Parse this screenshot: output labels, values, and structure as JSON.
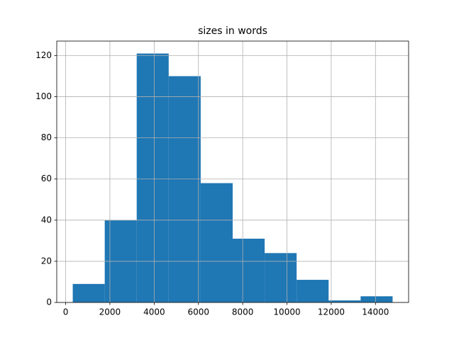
{
  "chart_data": {
    "type": "histogram",
    "title": "sizes in words",
    "bins": [
      321,
      1766,
      3211,
      4656,
      6102,
      7547,
      8992,
      10437,
      11882,
      13328,
      14773
    ],
    "counts": [
      9,
      40,
      121,
      110,
      58,
      31,
      24,
      11,
      1,
      3
    ],
    "color": "#1f77b4",
    "xlim": [
      -402,
      15496
    ],
    "xticks": [
      0,
      2000,
      4000,
      6000,
      8000,
      10000,
      12000,
      14000
    ],
    "ylim": [
      0,
      127.05
    ],
    "yticks": [
      0,
      20,
      40,
      60,
      80,
      100,
      120
    ],
    "grid": true
  }
}
